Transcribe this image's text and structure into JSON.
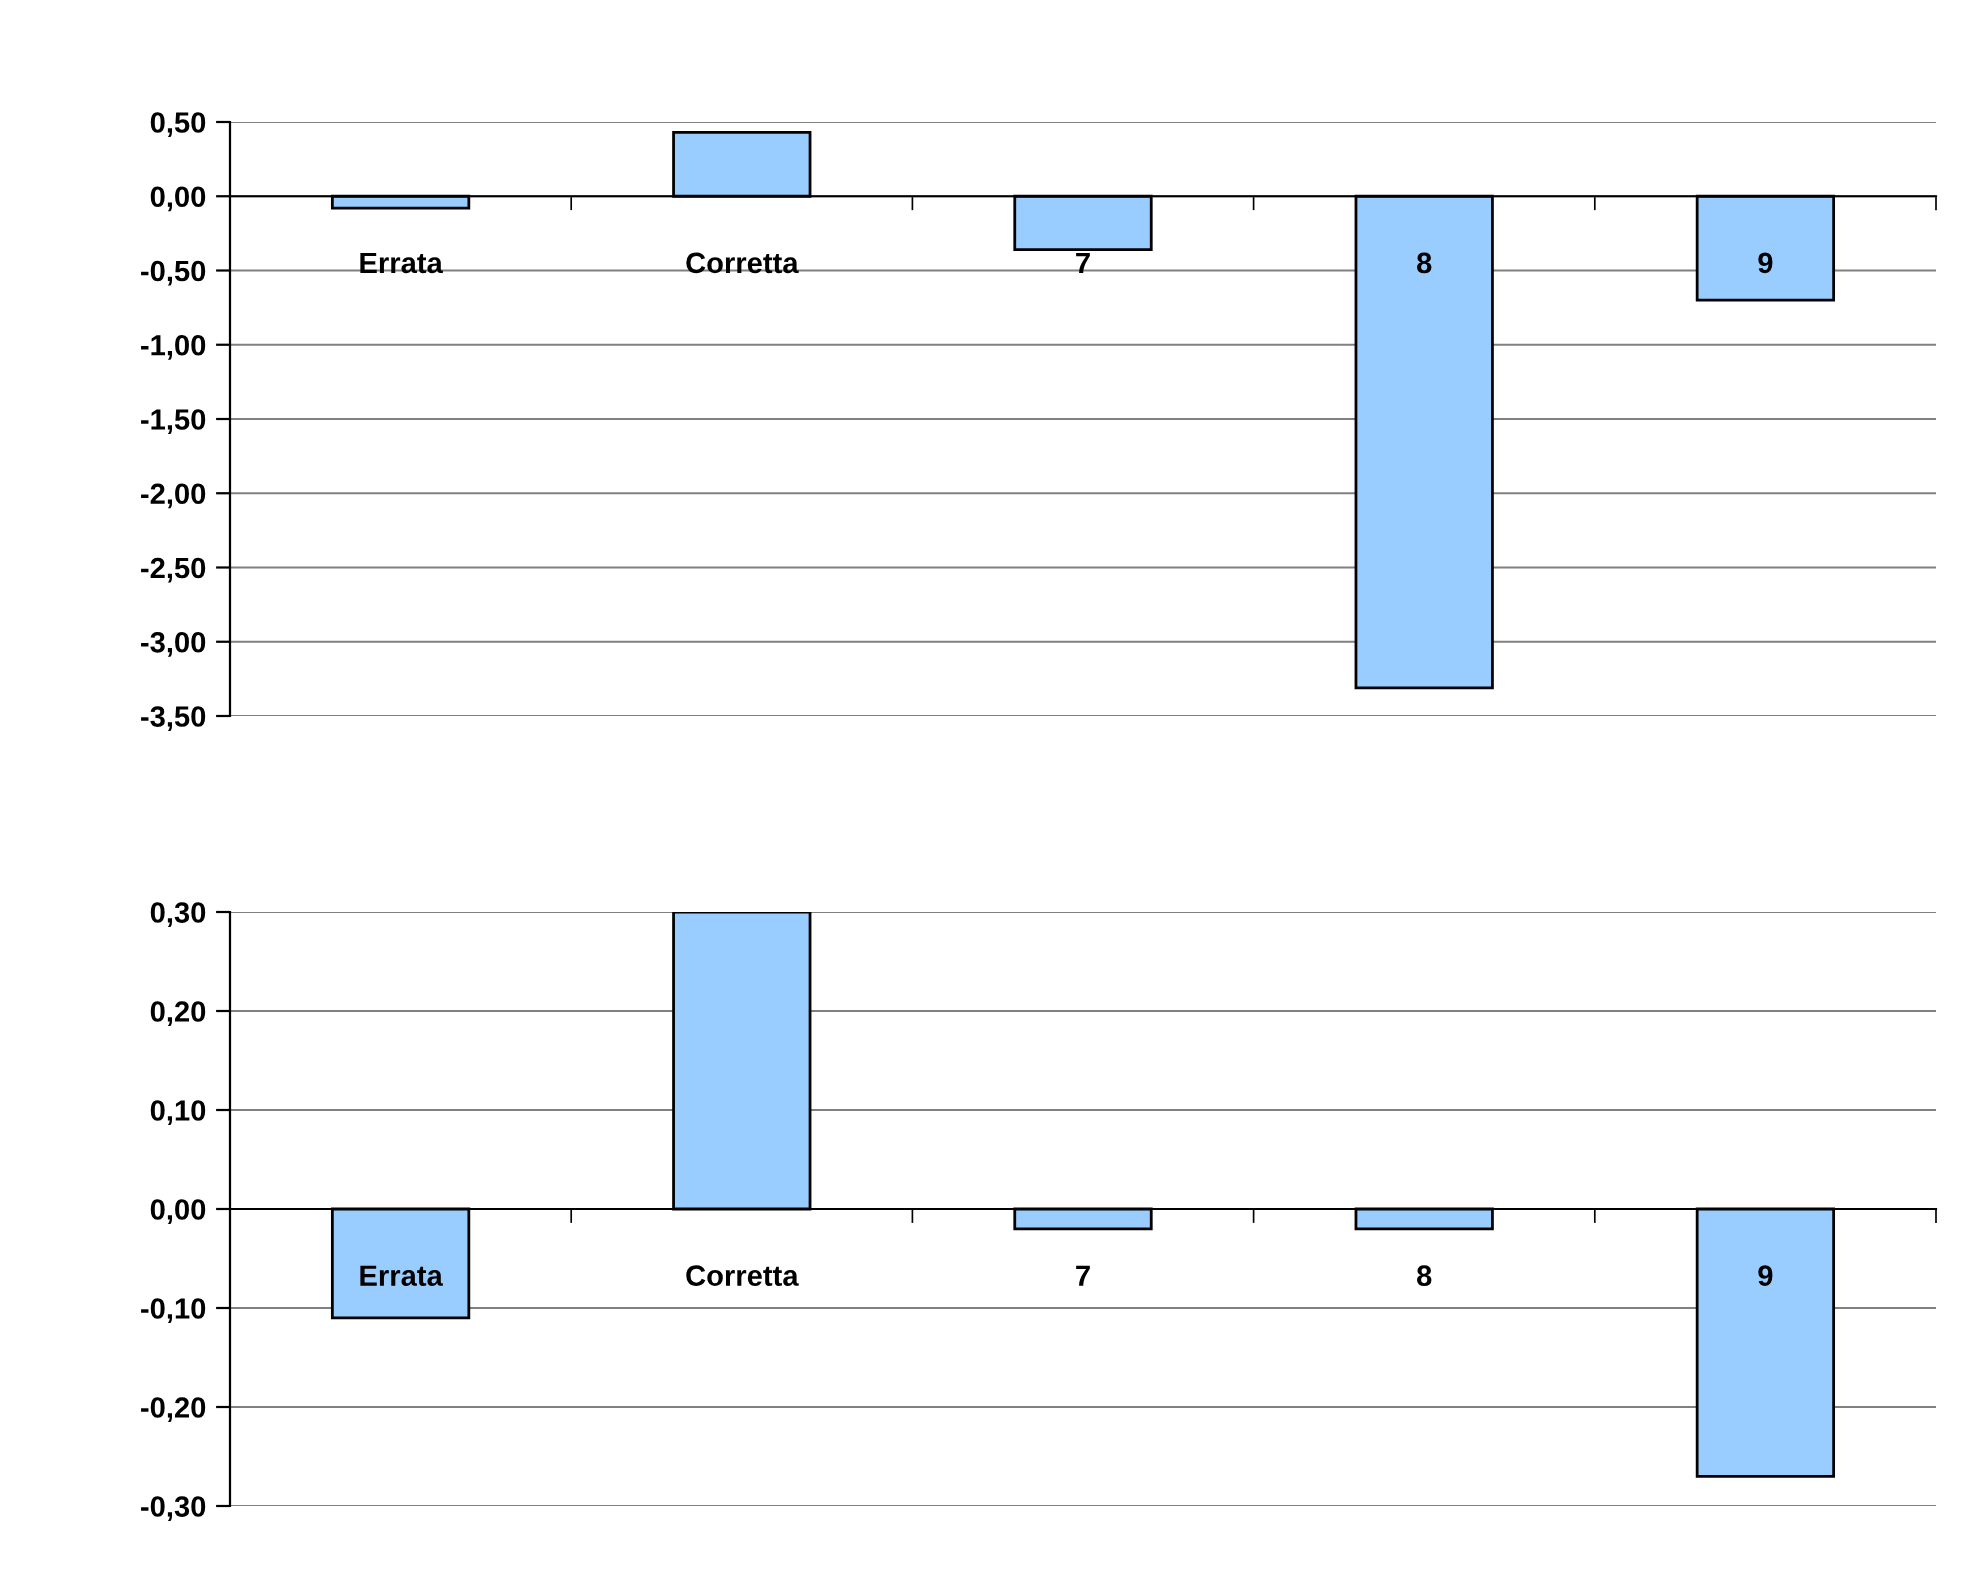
{
  "chart_data": [
    {
      "type": "bar",
      "categories": [
        "Errata",
        "Corretta",
        "7",
        "8",
        "9"
      ],
      "values": [
        -0.08,
        0.43,
        -0.36,
        -3.31,
        -0.7
      ],
      "color": "#99ccff",
      "ylim": [
        -3.5,
        0.5
      ],
      "yticks": [
        {
          "value": 0.5,
          "label": "0,50"
        },
        {
          "value": 0.0,
          "label": "0,00"
        },
        {
          "value": -0.5,
          "label": "-0,50"
        },
        {
          "value": -1.0,
          "label": "-1,00"
        },
        {
          "value": -1.5,
          "label": "-1,50"
        },
        {
          "value": -2.0,
          "label": "-2,00"
        },
        {
          "value": -2.5,
          "label": "-2,50"
        },
        {
          "value": -3.0,
          "label": "-3,00"
        },
        {
          "value": -3.5,
          "label": "-3,50"
        }
      ],
      "grid": "y"
    },
    {
      "type": "bar",
      "categories": [
        "Errata",
        "Corretta",
        "7",
        "8",
        "9"
      ],
      "values": [
        -0.11,
        0.3,
        -0.02,
        -0.02,
        -0.27
      ],
      "color": "#99ccff",
      "ylim": [
        -0.3,
        0.3
      ],
      "yticks": [
        {
          "value": 0.3,
          "label": "0,30"
        },
        {
          "value": 0.2,
          "label": "0,20"
        },
        {
          "value": 0.1,
          "label": "0,10"
        },
        {
          "value": 0.0,
          "label": "0,00"
        },
        {
          "value": -0.1,
          "label": "-0,10"
        },
        {
          "value": -0.2,
          "label": "-0,20"
        },
        {
          "value": -0.3,
          "label": "-0,30"
        }
      ],
      "grid": "y"
    }
  ]
}
